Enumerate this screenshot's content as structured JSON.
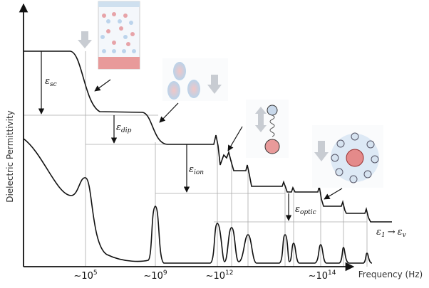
{
  "axes": {
    "y_label": "Dielectric Permittivity",
    "x_label": "Frequency (Hz)"
  },
  "ticks": [
    {
      "base": "~10",
      "exp": "5"
    },
    {
      "base": "~10",
      "exp": "9"
    },
    {
      "base": "~10",
      "exp": "12"
    },
    {
      "base": "~10",
      "exp": "14"
    }
  ],
  "labels": {
    "sc": {
      "symbol": "ε",
      "sub": "sc"
    },
    "dip": {
      "symbol": "ε",
      "sub": "dip"
    },
    "ion": {
      "symbol": "ε",
      "sub": "ion"
    },
    "optic": {
      "symbol": "ε",
      "sub": "optic"
    },
    "limit": {
      "from_symbol": "ε",
      "from_sub": "1",
      "arrow": "→",
      "to_symbol": "ε",
      "to_sub": "v"
    }
  }
}
